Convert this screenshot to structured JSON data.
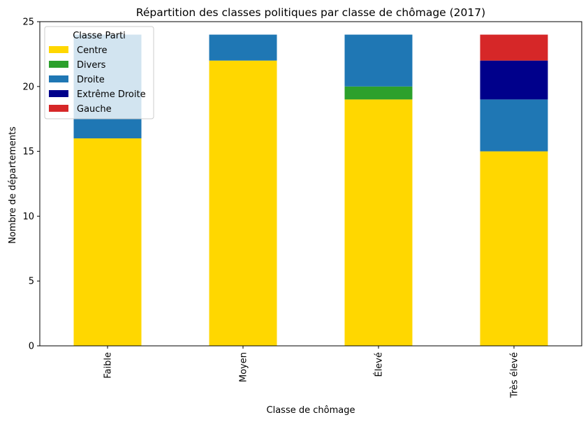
{
  "chart_data": {
    "type": "bar",
    "stacked": true,
    "title": "Répartition des classes politiques par classe de chômage (2017)",
    "xlabel": "Classe de chômage",
    "ylabel": "Nombre de départements",
    "categories": [
      "Faible",
      "Moyen",
      "Élevé",
      "Très élevé"
    ],
    "ylim": [
      0,
      25
    ],
    "yticks": [
      0,
      5,
      10,
      15,
      20,
      25
    ],
    "legend": {
      "title": "Classe Parti",
      "placement": "top-left"
    },
    "series": [
      {
        "name": "Centre",
        "color": "#ffd700",
        "values": [
          16,
          22,
          19,
          15
        ]
      },
      {
        "name": "Divers",
        "color": "#2ca02c",
        "values": [
          0,
          0,
          1,
          0
        ]
      },
      {
        "name": "Droite",
        "color": "#1f77b4",
        "values": [
          8,
          2,
          4,
          4
        ]
      },
      {
        "name": "Extrême Droite",
        "color": "#00008b",
        "values": [
          0,
          0,
          0,
          3
        ]
      },
      {
        "name": "Gauche",
        "color": "#d62728",
        "values": [
          0,
          0,
          0,
          2
        ]
      }
    ]
  }
}
